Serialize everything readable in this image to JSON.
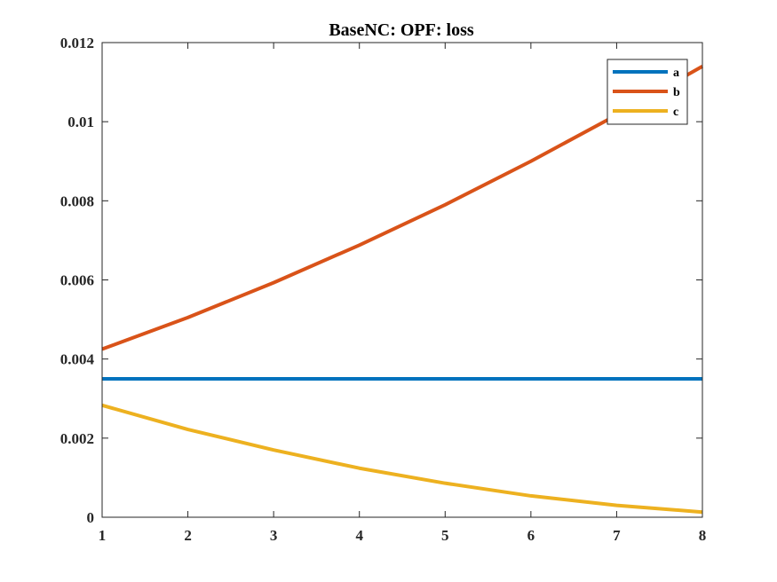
{
  "chart_data": {
    "type": "line",
    "title": "BaseNC: OPF: loss",
    "xlabel": "",
    "ylabel": "",
    "xlim": [
      1,
      8
    ],
    "ylim": [
      0,
      0.012
    ],
    "xticks": [
      1,
      2,
      3,
      4,
      5,
      6,
      7,
      8
    ],
    "xtick_labels": [
      "1",
      "2",
      "3",
      "4",
      "5",
      "6",
      "7",
      "8"
    ],
    "yticks": [
      0,
      0.002,
      0.004,
      0.006,
      0.008,
      0.01,
      0.012
    ],
    "ytick_labels": [
      "0",
      "0.002",
      "0.004",
      "0.006",
      "0.008",
      "0.01",
      "0.012"
    ],
    "grid": false,
    "legend_position": "top-right",
    "x": [
      1,
      2,
      3,
      4,
      5,
      6,
      7,
      8
    ],
    "series": [
      {
        "name": "a",
        "color": "#0072BD",
        "values": [
          0.0035,
          0.0035,
          0.0035,
          0.0035,
          0.0035,
          0.0035,
          0.0035,
          0.0035
        ]
      },
      {
        "name": "b",
        "color": "#D95319",
        "values": [
          0.00425,
          0.00505,
          0.00593,
          0.00688,
          0.0079,
          0.009,
          0.01017,
          0.0114
        ]
      },
      {
        "name": "c",
        "color": "#EDB120",
        "values": [
          0.00283,
          0.00222,
          0.0017,
          0.00124,
          0.00086,
          0.00054,
          0.0003,
          0.00013
        ]
      }
    ]
  }
}
